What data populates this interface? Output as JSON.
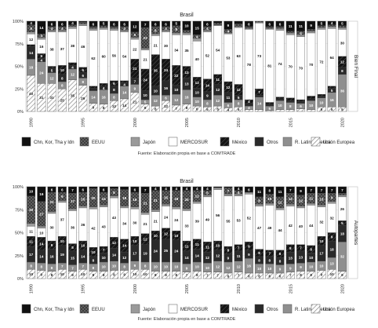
{
  "legend_title": "",
  "colors": {
    "Chn, Kor, Tha y Idn": "#111111",
    "EEUU": "#333333",
    "Japón": "#9a9a9a",
    "MERCOSUR": "#ffffff",
    "México": "#151515",
    "Otros": "#2a2a2a",
    "R. Latinoamerica": "#8f8f8f",
    "Unión Europea": "#ffffff"
  },
  "patterns": {
    "EEUU": "crosshatch",
    "México": "diagonal-dark",
    "Unión Europea": "diagonal-light"
  },
  "chart_data": [
    {
      "type": "bar",
      "stacked": true,
      "title": "Brasil",
      "facet_label": "Bien Final",
      "caption": "Fuente: Elaboración propia en base a COMTRADE",
      "x": [
        1990,
        1991,
        1992,
        1993,
        1994,
        1995,
        1996,
        1997,
        1998,
        1999,
        2000,
        2001,
        2002,
        2003,
        2004,
        2005,
        2006,
        2007,
        2008,
        2009,
        2010,
        2011,
        2012,
        2013,
        2014,
        2015,
        2016,
        2017,
        2018,
        2019,
        2020
      ],
      "x_ticks": [
        1990,
        1995,
        2000,
        2005,
        2010,
        2015,
        2020
      ],
      "y_ticks": [
        "0%",
        "25%",
        "50%",
        "75%",
        "100%"
      ],
      "ylim": [
        0,
        100
      ],
      "grid": true,
      "legend_position": "bottom",
      "series": [
        {
          "name": "Unión Europea",
          "values": [
            40,
            31,
            31,
            25,
            35,
            29,
            9,
            8,
            12,
            14,
            21,
            8,
            6,
            12,
            7,
            8,
            6,
            5,
            6,
            4,
            5,
            2,
            2,
            1,
            2,
            2,
            3,
            2,
            5,
            5,
            5
          ]
        },
        {
          "name": "R. Latinoamerica",
          "values": [
            18,
            24,
            12,
            8,
            12,
            8,
            14,
            16,
            8,
            14,
            9,
            5,
            12,
            6,
            12,
            16,
            10,
            8,
            12,
            6,
            8,
            4,
            14,
            5,
            10,
            8,
            6,
            10,
            10,
            16,
            36
          ]
        },
        {
          "name": "Otros",
          "values": [
            14,
            4,
            5,
            8,
            4,
            6,
            3,
            4,
            8,
            4,
            7,
            10,
            10,
            16,
            10,
            13,
            10,
            9,
            12,
            11,
            5,
            3,
            2,
            2,
            2,
            2,
            2,
            2,
            2,
            5,
            8
          ]
        },
        {
          "name": "México",
          "values": [
            2,
            5,
            2,
            10,
            3,
            6,
            2,
            3,
            6,
            2,
            21,
            24,
            35,
            24,
            22,
            13,
            12,
            14,
            11,
            12,
            12,
            4,
            7,
            2,
            2,
            3,
            2,
            3,
            2,
            2,
            12
          ]
        },
        {
          "name": "MERCOSUR",
          "values": [
            12,
            16,
            38,
            37,
            38,
            46,
            62,
            60,
            56,
            54,
            22,
            21,
            21,
            30,
            34,
            35,
            40,
            52,
            54,
            53,
            63,
            78,
            73,
            81,
            74,
            70,
            70,
            70,
            72,
            64,
            30
          ]
        },
        {
          "name": "Japón",
          "values": [
            2,
            2,
            2,
            2,
            2,
            2,
            2,
            2,
            2,
            2,
            2,
            2,
            2,
            2,
            2,
            2,
            3,
            2,
            1,
            1,
            1,
            1,
            1,
            1,
            2,
            2,
            2,
            2,
            2,
            2,
            2
          ]
        },
        {
          "name": "EEUU",
          "values": [
            8,
            4,
            4,
            4,
            2,
            2,
            2,
            2,
            2,
            4,
            6,
            23,
            8,
            4,
            8,
            3,
            4,
            4,
            2,
            4,
            3,
            2,
            1,
            2,
            2,
            2,
            4,
            2,
            2,
            2,
            2
          ]
        },
        {
          "name": "Chn, Kor, Tha y Idn",
          "values": [
            4,
            14,
            6,
            6,
            4,
            1,
            6,
            5,
            6,
            6,
            12,
            7,
            6,
            6,
            5,
            10,
            15,
            6,
            2,
            9,
            3,
            6,
            0,
            6,
            6,
            11,
            11,
            9,
            5,
            4,
            5
          ]
        }
      ]
    },
    {
      "type": "bar",
      "stacked": true,
      "title": "Brasil",
      "facet_label": "Autopartes",
      "caption": "Fuente: Elaboración propia en base a COMTRADE",
      "x": [
        1990,
        1991,
        1992,
        1993,
        1994,
        1995,
        1996,
        1997,
        1998,
        1999,
        2000,
        2001,
        2002,
        2003,
        2004,
        2005,
        2006,
        2007,
        2008,
        2009,
        2010,
        2011,
        2012,
        2013,
        2014,
        2015,
        2016,
        2017,
        2018,
        2019,
        2020
      ],
      "x_ticks": [
        1990,
        1995,
        2000,
        2005,
        2010,
        2015,
        2020
      ],
      "y_ticks": [
        "0%",
        "25%",
        "50%",
        "75%",
        "100%"
      ],
      "ylim": [
        0,
        100
      ],
      "grid": true,
      "legend_position": "bottom",
      "series": [
        {
          "name": "Unión Europea",
          "values": [
            10,
            9,
            8,
            10,
            8,
            10,
            8,
            8,
            9,
            9,
            10,
            10,
            8,
            8,
            8,
            7,
            8,
            7,
            7,
            6,
            7,
            6,
            6,
            6,
            6,
            7,
            8,
            8,
            9,
            10,
            8
          ]
        },
        {
          "name": "R. Latinoamerica",
          "values": [
            8,
            8,
            8,
            7,
            7,
            7,
            8,
            10,
            10,
            8,
            9,
            8,
            10,
            10,
            10,
            9,
            10,
            10,
            12,
            12,
            12,
            16,
            10,
            10,
            9,
            9,
            9,
            10,
            10,
            13,
            32
          ]
        },
        {
          "name": "Otros",
          "values": [
            17,
            14,
            16,
            19,
            15,
            14,
            8,
            10,
            14,
            12,
            17,
            19,
            24,
            25,
            24,
            14,
            14,
            12,
            12,
            9,
            11,
            9,
            8,
            8,
            8,
            13,
            13,
            10,
            17,
            18,
            18
          ]
        },
        {
          "name": "México",
          "values": [
            11,
            14,
            9,
            10,
            8,
            10,
            10,
            7,
            12,
            14,
            10,
            12,
            10,
            12,
            10,
            11,
            11,
            11,
            10,
            8,
            7,
            9,
            8,
            7,
            8,
            8,
            7,
            8,
            10,
            9,
            5
          ]
        },
        {
          "name": "MERCOSUR",
          "values": [
            11,
            10,
            30,
            37,
            36,
            36,
            42,
            43,
            43,
            34,
            30,
            21,
            21,
            24,
            24,
            33,
            39,
            49,
            56,
            55,
            53,
            52,
            47,
            49,
            44,
            42,
            40,
            44,
            32,
            32,
            26
          ]
        },
        {
          "name": "Japón",
          "values": [
            3,
            2,
            2,
            2,
            2,
            2,
            2,
            2,
            2,
            2,
            2,
            2,
            2,
            2,
            2,
            2,
            2,
            2,
            2,
            2,
            2,
            2,
            2,
            2,
            2,
            2,
            2,
            2,
            2,
            2,
            2
          ]
        },
        {
          "name": "EEUU",
          "values": [
            30,
            27,
            21,
            9,
            17,
            15,
            20,
            14,
            8,
            18,
            16,
            21,
            21,
            15,
            18,
            20,
            12,
            5,
            0,
            7,
            4,
            0,
            8,
            10,
            12,
            12,
            12,
            11,
            13,
            9,
            2
          ]
        },
        {
          "name": "Chn, Kor, Tha y Idn",
          "values": [
            10,
            16,
            6,
            6,
            7,
            6,
            2,
            6,
            2,
            3,
            6,
            7,
            4,
            4,
            4,
            4,
            4,
            4,
            1,
            1,
            4,
            6,
            11,
            8,
            11,
            7,
            9,
            7,
            7,
            7,
            7
          ]
        }
      ]
    }
  ],
  "legend": [
    "Chn, Kor, Tha y Idn",
    "EEUU",
    "Japón",
    "MERCOSUR",
    "México",
    "Otros",
    "R. Latinoamerica",
    "Unión Europea"
  ]
}
